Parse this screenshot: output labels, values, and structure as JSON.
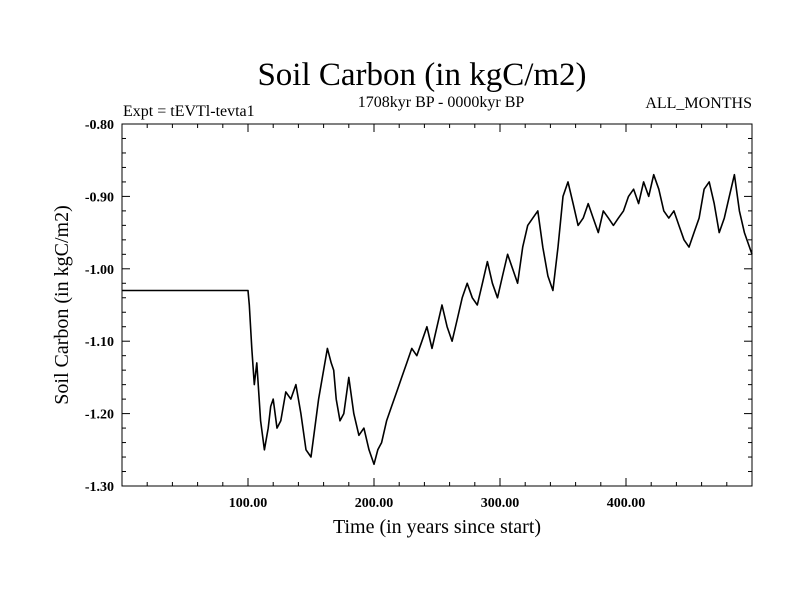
{
  "chart_data": {
    "type": "line",
    "title": "Soil Carbon (in kgC/m2)",
    "subtitle": "1708kyr BP - 0000kyr BP",
    "left_label": "Expt = tEVTl-tevta1",
    "right_label": "ALL_MONTHS",
    "xlabel": "Time (in years since start)",
    "ylabel": "Soil Carbon (in kgC/m2)",
    "xlim": [
      0,
      500
    ],
    "ylim": [
      -1.3,
      -0.8
    ],
    "x_ticks": [
      {
        "value": 100,
        "label": "100.00"
      },
      {
        "value": 200,
        "label": "200.00"
      },
      {
        "value": 300,
        "label": "300.00"
      },
      {
        "value": 400,
        "label": "400.00"
      }
    ],
    "y_ticks": [
      {
        "value": -0.8,
        "label": "-0.80"
      },
      {
        "value": -0.9,
        "label": "-0.90"
      },
      {
        "value": -1.0,
        "label": "-1.00"
      },
      {
        "value": -1.1,
        "label": "-1.10"
      },
      {
        "value": -1.2,
        "label": "-1.20"
      },
      {
        "value": -1.3,
        "label": "-1.30"
      }
    ],
    "x_minor_step": 20,
    "y_minor_step": 0.02,
    "grid": false,
    "series": [
      {
        "name": "Soil Carbon",
        "x": [
          0,
          100,
          101,
          103,
          105,
          107,
          110,
          113,
          116,
          118,
          120,
          123,
          126,
          130,
          134,
          138,
          142,
          146,
          150,
          153,
          156,
          160,
          163,
          166,
          168,
          170,
          173,
          176,
          180,
          184,
          188,
          192,
          196,
          200,
          203,
          206,
          210,
          214,
          218,
          222,
          226,
          230,
          234,
          238,
          242,
          246,
          250,
          254,
          258,
          262,
          266,
          270,
          274,
          278,
          282,
          286,
          290,
          294,
          298,
          302,
          306,
          310,
          314,
          318,
          322,
          326,
          330,
          334,
          338,
          342,
          346,
          350,
          354,
          358,
          362,
          366,
          370,
          374,
          378,
          382,
          386,
          390,
          394,
          398,
          402,
          406,
          410,
          414,
          418,
          422,
          426,
          430,
          434,
          438,
          442,
          446,
          450,
          454,
          458,
          462,
          466,
          470,
          474,
          478,
          482,
          486,
          490,
          494,
          498,
          500
        ],
        "y": [
          -1.03,
          -1.03,
          -1.05,
          -1.11,
          -1.16,
          -1.13,
          -1.21,
          -1.25,
          -1.22,
          -1.19,
          -1.18,
          -1.22,
          -1.21,
          -1.17,
          -1.18,
          -1.16,
          -1.2,
          -1.25,
          -1.26,
          -1.22,
          -1.18,
          -1.14,
          -1.11,
          -1.13,
          -1.14,
          -1.18,
          -1.21,
          -1.2,
          -1.15,
          -1.2,
          -1.23,
          -1.22,
          -1.25,
          -1.27,
          -1.25,
          -1.24,
          -1.21,
          -1.19,
          -1.17,
          -1.15,
          -1.13,
          -1.11,
          -1.12,
          -1.1,
          -1.08,
          -1.11,
          -1.08,
          -1.05,
          -1.08,
          -1.1,
          -1.07,
          -1.04,
          -1.02,
          -1.04,
          -1.05,
          -1.02,
          -0.99,
          -1.02,
          -1.04,
          -1.01,
          -0.98,
          -1.0,
          -1.02,
          -0.97,
          -0.94,
          -0.93,
          -0.92,
          -0.97,
          -1.01,
          -1.03,
          -0.97,
          -0.9,
          -0.88,
          -0.91,
          -0.94,
          -0.93,
          -0.91,
          -0.93,
          -0.95,
          -0.92,
          -0.93,
          -0.94,
          -0.93,
          -0.92,
          -0.9,
          -0.89,
          -0.91,
          -0.88,
          -0.9,
          -0.87,
          -0.89,
          -0.92,
          -0.93,
          -0.92,
          -0.94,
          -0.96,
          -0.97,
          -0.95,
          -0.93,
          -0.89,
          -0.88,
          -0.91,
          -0.95,
          -0.93,
          -0.9,
          -0.87,
          -0.92,
          -0.95,
          -0.97,
          -0.98
        ]
      }
    ]
  }
}
